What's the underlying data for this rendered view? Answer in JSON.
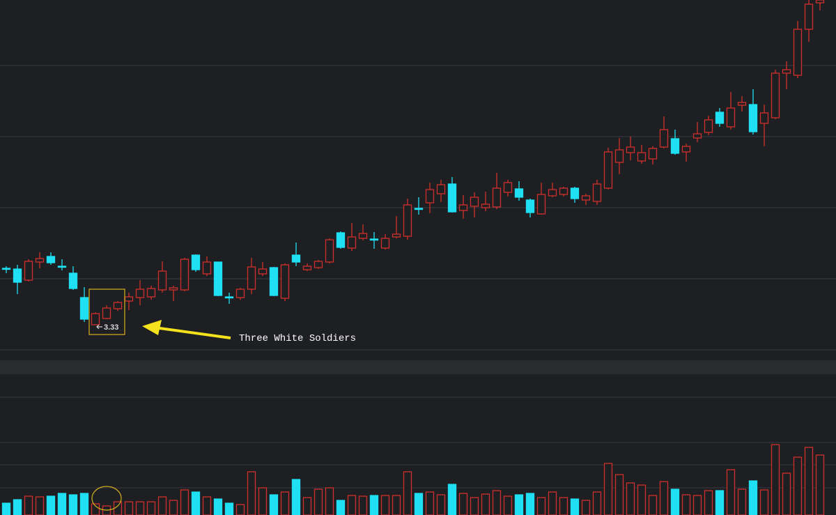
{
  "chart_data": {
    "type": "candlestick",
    "annotation": "Three White Soldiers",
    "up_color": "#d0302c",
    "down_color": "#1fe0f2",
    "ylim": [
      2.99,
      7.99
    ],
    "price_grid": [
      7.05,
      6.03,
      5.01,
      3.99
    ],
    "volume_ylim": [
      0,
      200
    ],
    "volume_grid": [
      169,
      104,
      72,
      39
    ],
    "open": [
      4.14,
      4.13,
      3.97,
      4.23,
      4.31,
      4.17,
      4.07,
      3.72,
      3.33,
      3.42,
      3.56,
      3.67,
      3.72,
      3.73,
      3.83,
      3.83,
      3.83,
      4.33,
      4.06,
      4.23,
      3.73,
      3.72,
      3.84,
      4.06,
      4.15,
      3.71,
      4.33,
      4.12,
      4.15,
      4.23,
      4.65,
      4.43,
      4.57,
      4.56,
      4.43,
      4.59,
      4.6,
      5.0,
      5.08,
      5.21,
      5.35,
      4.97,
      5.03,
      5.01,
      5.02,
      5.23,
      5.28,
      5.12,
      4.92,
      5.18,
      5.2,
      5.29,
      5.12,
      5.1,
      5.29,
      5.66,
      5.8,
      5.68,
      5.71,
      5.88,
      6.0,
      5.81,
      6.01,
      6.09,
      6.38,
      6.17,
      6.48,
      6.49,
      6.22,
      6.3,
      6.94,
      6.91,
      7.57,
      7.95
    ],
    "high": [
      4.17,
      4.19,
      4.27,
      4.37,
      4.37,
      4.27,
      4.17,
      3.87,
      3.51,
      3.61,
      3.67,
      3.79,
      3.97,
      3.89,
      4.24,
      3.89,
      4.29,
      4.34,
      4.31,
      4.23,
      3.79,
      3.86,
      4.29,
      4.23,
      4.16,
      4.21,
      4.51,
      4.21,
      4.26,
      4.57,
      4.67,
      4.79,
      4.77,
      4.66,
      4.63,
      4.89,
      5.14,
      5.16,
      5.37,
      5.41,
      5.45,
      5.19,
      5.23,
      5.24,
      5.51,
      5.41,
      5.39,
      5.14,
      5.37,
      5.37,
      5.31,
      5.31,
      5.21,
      5.41,
      5.87,
      6.01,
      6.03,
      5.91,
      5.89,
      6.32,
      6.13,
      5.93,
      6.24,
      6.33,
      6.44,
      6.67,
      6.61,
      6.71,
      6.49,
      6.99,
      7.11,
      7.69,
      7.99,
      7.99
    ],
    "low": [
      4.07,
      3.77,
      3.95,
      4.14,
      4.19,
      4.11,
      3.83,
      3.37,
      3.33,
      3.41,
      3.53,
      3.54,
      3.61,
      3.69,
      3.79,
      3.67,
      3.81,
      4.09,
      4.03,
      3.74,
      3.63,
      3.69,
      3.77,
      4.03,
      3.74,
      3.67,
      4.17,
      4.1,
      4.13,
      4.21,
      4.42,
      4.39,
      4.54,
      4.42,
      4.41,
      4.57,
      4.55,
      4.91,
      4.93,
      5.09,
      4.94,
      4.85,
      4.87,
      4.96,
      4.99,
      5.17,
      5.11,
      4.87,
      4.91,
      5.16,
      5.17,
      5.08,
      5.05,
      5.05,
      5.27,
      5.49,
      5.69,
      5.64,
      5.63,
      5.86,
      5.77,
      5.67,
      5.95,
      6.05,
      6.17,
      6.13,
      6.39,
      6.06,
      5.89,
      6.28,
      6.71,
      6.87,
      7.39,
      7.84
    ],
    "close": [
      4.13,
      3.94,
      4.24,
      4.28,
      4.22,
      4.16,
      3.85,
      3.41,
      3.49,
      3.57,
      3.65,
      3.73,
      3.84,
      3.85,
      4.1,
      3.86,
      4.27,
      4.12,
      4.23,
      3.75,
      3.72,
      3.84,
      4.16,
      4.13,
      3.75,
      4.19,
      4.23,
      4.17,
      4.24,
      4.55,
      4.44,
      4.59,
      4.64,
      4.55,
      4.57,
      4.63,
      5.05,
      4.99,
      5.27,
      5.34,
      4.95,
      5.05,
      5.16,
      5.06,
      5.29,
      5.37,
      5.16,
      4.94,
      5.2,
      5.27,
      5.29,
      5.14,
      5.18,
      5.35,
      5.81,
      5.84,
      5.88,
      5.8,
      5.86,
      6.13,
      5.79,
      5.89,
      6.07,
      6.27,
      6.22,
      6.44,
      6.52,
      6.1,
      6.37,
      6.94,
      6.99,
      7.57,
      7.93,
      7.99
    ],
    "volume": [
      17,
      22,
      27,
      26,
      27,
      31,
      29,
      31,
      16,
      13,
      19,
      19,
      19,
      19,
      26,
      21,
      36,
      33,
      26,
      23,
      17,
      15,
      62,
      39,
      29,
      33,
      51,
      25,
      37,
      39,
      21,
      28,
      27,
      28,
      28,
      28,
      62,
      31,
      33,
      29,
      44,
      31,
      25,
      30,
      35,
      27,
      29,
      31,
      25,
      33,
      25,
      23,
      21,
      33,
      74,
      58,
      46,
      43,
      28,
      48,
      37,
      29,
      28,
      35,
      35,
      65,
      37,
      49,
      36,
      101,
      60,
      83,
      97,
      86
    ]
  }
}
